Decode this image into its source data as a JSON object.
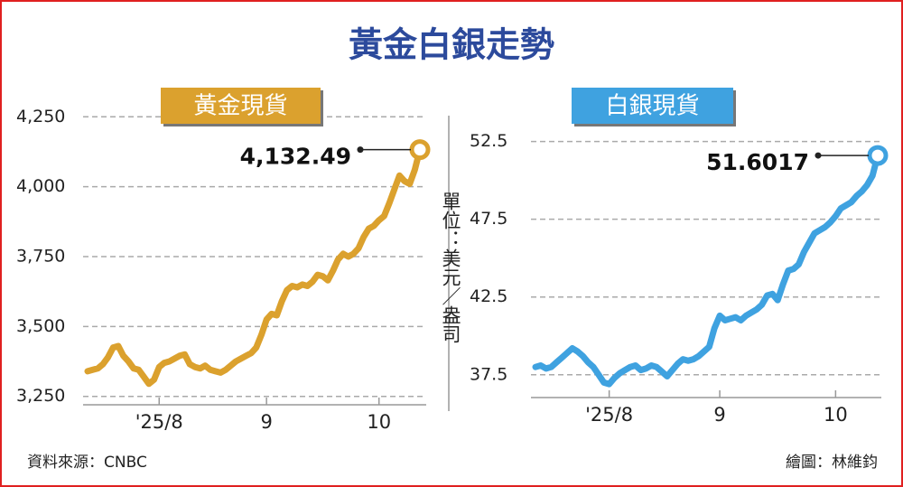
{
  "title": "黃金白銀走勢",
  "unit": "單位：美元／盎司",
  "source": "資料來源：CNBC",
  "credit": "繪圖：林維鈞",
  "chart_data": [
    {
      "type": "line",
      "categories": [
        null,
        null,
        null,
        null,
        null,
        null,
        null,
        null,
        null,
        null,
        null,
        null,
        null,
        null,
        "'25/8",
        null,
        null,
        null,
        null,
        null,
        null,
        null,
        null,
        null,
        null,
        null,
        null,
        null,
        null,
        null,
        null,
        null,
        null,
        null,
        null,
        "9",
        null,
        null,
        null,
        null,
        null,
        null,
        null,
        null,
        null,
        null,
        null,
        null,
        null,
        null,
        null,
        null,
        null,
        null,
        null,
        null,
        null,
        "10",
        null,
        null,
        null,
        null,
        null,
        null,
        null,
        null
      ],
      "series": [
        {
          "name": "黃金現貨",
          "color": "#dba12e",
          "values": [
            3340,
            3345,
            3350,
            3365,
            3390,
            3425,
            3430,
            3395,
            3375,
            3350,
            3345,
            3320,
            3295,
            3310,
            3355,
            3370,
            3375,
            3385,
            3395,
            3400,
            3365,
            3355,
            3350,
            3360,
            3345,
            3340,
            3335,
            3345,
            3360,
            3375,
            3385,
            3395,
            3405,
            3425,
            3470,
            3525,
            3545,
            3540,
            3590,
            3630,
            3645,
            3640,
            3650,
            3645,
            3660,
            3685,
            3680,
            3665,
            3700,
            3740,
            3760,
            3750,
            3760,
            3780,
            3820,
            3850,
            3860,
            3880,
            3895,
            3940,
            3990,
            4040,
            4020,
            4010,
            4060,
            4132.49
          ],
          "value_labels": [
            null,
            null,
            null,
            null,
            null,
            null,
            null,
            null,
            null,
            null,
            null,
            null,
            null,
            null,
            null,
            null,
            null,
            null,
            null,
            null,
            null,
            null,
            null,
            null,
            null,
            null,
            null,
            null,
            null,
            null,
            null,
            null,
            null,
            null,
            null,
            null,
            null,
            null,
            null,
            null,
            null,
            null,
            null,
            null,
            null,
            null,
            null,
            null,
            null,
            null,
            null,
            null,
            null,
            null,
            null,
            null,
            null,
            null,
            null,
            null,
            null,
            null,
            null,
            null,
            null,
            "4,132.49"
          ]
        }
      ],
      "ylim": [
        3220,
        4280
      ],
      "yticks": [
        {
          "value": 3250,
          "label": "3,250"
        },
        {
          "value": 3500,
          "label": "3,500"
        },
        {
          "value": 3750,
          "label": "3,750"
        },
        {
          "value": 4000,
          "label": "4,000"
        },
        {
          "value": 4250,
          "label": "4,250"
        }
      ],
      "grid": true
    },
    {
      "type": "line",
      "categories": [
        null,
        null,
        null,
        null,
        null,
        null,
        null,
        null,
        null,
        null,
        null,
        null,
        null,
        null,
        "'25/8",
        null,
        null,
        null,
        null,
        null,
        null,
        null,
        null,
        null,
        null,
        null,
        null,
        null,
        null,
        null,
        null,
        null,
        null,
        null,
        null,
        "9",
        null,
        null,
        null,
        null,
        null,
        null,
        null,
        null,
        null,
        null,
        null,
        null,
        null,
        null,
        null,
        null,
        null,
        null,
        null,
        null,
        null,
        "10",
        null,
        null,
        null,
        null,
        null,
        null,
        null,
        null
      ],
      "series": [
        {
          "name": "白銀現貨",
          "color": "#3fa2e0",
          "values": [
            38.0,
            38.1,
            37.9,
            38.0,
            38.3,
            38.6,
            38.9,
            39.2,
            39.0,
            38.7,
            38.3,
            38.0,
            37.5,
            37.0,
            36.9,
            37.3,
            37.6,
            37.8,
            38.0,
            38.1,
            37.8,
            37.9,
            38.1,
            38.0,
            37.7,
            37.4,
            37.8,
            38.2,
            38.5,
            38.4,
            38.5,
            38.7,
            39.0,
            39.3,
            40.5,
            41.3,
            41.0,
            41.1,
            41.2,
            41.0,
            41.3,
            41.5,
            41.7,
            42.0,
            42.6,
            42.7,
            42.3,
            43.3,
            44.2,
            44.3,
            44.6,
            45.4,
            46.0,
            46.6,
            46.8,
            47.0,
            47.3,
            47.7,
            48.2,
            48.4,
            48.6,
            49.0,
            49.3,
            49.7,
            50.3,
            51.6017
          ]
        }
      ],
      "ylim": [
        36.5,
        53.0
      ],
      "yticks": [
        37.5,
        42.5,
        47.5,
        52.5
      ],
      "grid": true
    }
  ]
}
